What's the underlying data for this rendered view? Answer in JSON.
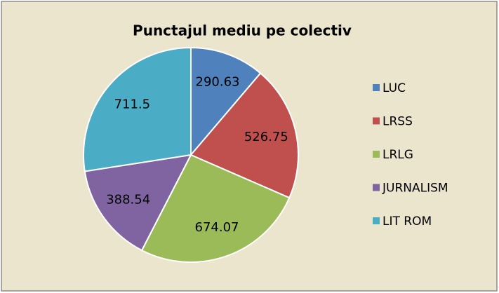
{
  "chart_data": {
    "type": "pie",
    "title": "Punctajul mediu pe colectiv",
    "categories": [
      "LUC",
      "LRSS",
      "LRLG",
      "JURNALISM",
      "LIT ROM"
    ],
    "values": [
      290.63,
      526.75,
      674.07,
      388.54,
      711.5
    ],
    "colors": [
      "#4f81bd",
      "#c0504d",
      "#9bbb59",
      "#8064a2",
      "#4bacc6"
    ],
    "legend": "right"
  }
}
